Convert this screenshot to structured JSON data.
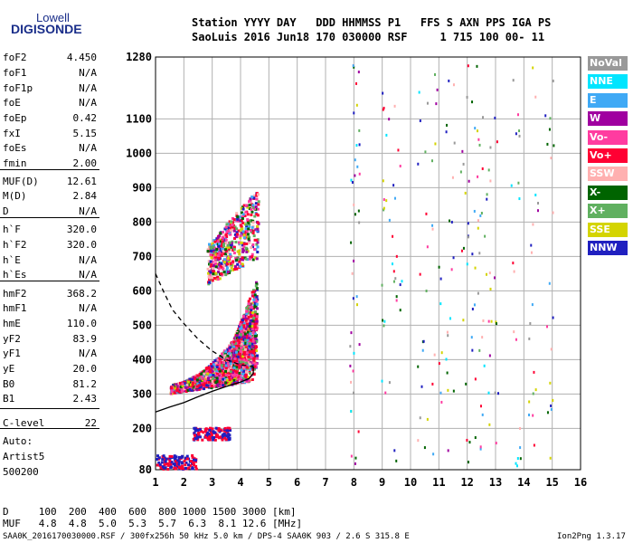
{
  "logo": {
    "line1": "Lowell",
    "line2": "DIGISONDE"
  },
  "header": {
    "row1": "Station YYYY DAY   DDD HHMMSS P1   FFS S AXN PPS IGA PS",
    "row2": "SaoLuis 2016 Jun18 170 030000 RSF     1 715 100 00- 11"
  },
  "params": [
    {
      "k": "foF2",
      "v": "4.450"
    },
    {
      "k": "foF1",
      "v": "N/A"
    },
    {
      "k": "foF1p",
      "v": "N/A"
    },
    {
      "k": "foE",
      "v": "N/A"
    },
    {
      "k": "foEp",
      "v": "0.42"
    },
    {
      "k": "fxI",
      "v": "5.15"
    },
    {
      "k": "foEs",
      "v": "N/A"
    },
    {
      "k": "fmin",
      "v": "2.00"
    },
    {
      "k": "MUF(D)",
      "v": "12.61"
    },
    {
      "k": "M(D)",
      "v": "2.84"
    },
    {
      "k": "D",
      "v": "N/A"
    },
    {
      "k": "h`F",
      "v": "320.0"
    },
    {
      "k": "h`F2",
      "v": "320.0"
    },
    {
      "k": "h`E",
      "v": "N/A"
    },
    {
      "k": "h`Es",
      "v": "N/A"
    },
    {
      "k": "hmF2",
      "v": "368.2"
    },
    {
      "k": "hmF1",
      "v": "N/A"
    },
    {
      "k": "hmE",
      "v": "110.0"
    },
    {
      "k": "yF2",
      "v": "83.9"
    },
    {
      "k": "yF1",
      "v": "N/A"
    },
    {
      "k": "yE",
      "v": "20.0"
    },
    {
      "k": "B0",
      "v": "81.2"
    },
    {
      "k": "B1",
      "v": "2.43"
    },
    {
      "k": "C-level",
      "v": "22"
    }
  ],
  "misc": {
    "auto": "Auto:",
    "artist": "Artist5",
    "version": "500200"
  },
  "legend": [
    {
      "label": "NoVal",
      "color": "#999999"
    },
    {
      "label": "NNE",
      "color": "#00e5ff"
    },
    {
      "label": "E",
      "color": "#3fa9f5"
    },
    {
      "label": "W",
      "color": "#a000a0"
    },
    {
      "label": "Vo-",
      "color": "#ff3ca0"
    },
    {
      "label": "Vo+",
      "color": "#ff0033"
    },
    {
      "label": "SSW",
      "color": "#ffb0b0"
    },
    {
      "label": "X-",
      "color": "#006400"
    },
    {
      "label": "X+",
      "color": "#60b060"
    },
    {
      "label": "SSE",
      "color": "#d4d400"
    },
    {
      "label": "NNW",
      "color": "#2020c0"
    }
  ],
  "footer": {
    "d_row": "D     100  200  400  600  800 1000 1500 3000 [km]",
    "muf_row": "MUF   4.8  4.8  5.0  5.3  5.7  6.3  8.1 12.6 [MHz]",
    "file_row": "SAA0K_2016170030000.RSF / 300fx256h 50 kHz 5.0 km / DPS-4 SAA0K 903 / 2.6 S 315.8 E",
    "version_row": "Ion2Png 1.3.17"
  },
  "chart_data": {
    "type": "scatter",
    "xlim": [
      1,
      16
    ],
    "ylim": [
      80,
      1280
    ],
    "x_ticks": [
      1,
      2,
      3,
      4,
      5,
      6,
      7,
      8,
      9,
      10,
      11,
      12,
      13,
      14,
      15,
      16
    ],
    "y_ticks": [
      80,
      200,
      300,
      400,
      500,
      600,
      700,
      800,
      900,
      1000,
      1100,
      1280
    ],
    "grid": true,
    "legend_position": "right",
    "profile_curve": [
      [
        1.0,
        248
      ],
      [
        1.5,
        262
      ],
      [
        2.0,
        275
      ],
      [
        2.5,
        292
      ],
      [
        3.0,
        308
      ],
      [
        3.5,
        322
      ],
      [
        4.0,
        335
      ],
      [
        4.3,
        345
      ],
      [
        4.45,
        360
      ],
      [
        4.45,
        380
      ]
    ],
    "profile_dashed": [
      [
        1.0,
        650
      ],
      [
        1.3,
        595
      ],
      [
        1.6,
        545
      ],
      [
        2.0,
        505
      ],
      [
        2.5,
        460
      ],
      [
        3.0,
        425
      ],
      [
        3.5,
        400
      ],
      [
        4.0,
        385
      ],
      [
        4.45,
        380
      ]
    ],
    "echo_regions": [
      {
        "name": "F2-trace",
        "x": [
          1.5,
          4.45
        ],
        "y": [
          305,
          520
        ]
      },
      {
        "name": "F2-upper",
        "x": [
          3.7,
          4.55
        ],
        "y": [
          380,
          640
        ]
      },
      {
        "name": "second-hop",
        "x": [
          2.8,
          4.6
        ],
        "y": [
          620,
          900
        ]
      },
      {
        "name": "low-echo",
        "x": [
          1.0,
          2.4
        ],
        "y": [
          85,
          125
        ]
      },
      {
        "name": "low-echo-2",
        "x": [
          2.3,
          3.6
        ],
        "y": [
          170,
          205
        ]
      }
    ],
    "interference_columns": [
      8.0,
      9.1,
      9.5,
      10.4,
      10.9,
      11.4,
      11.9,
      12.3,
      12.5,
      12.9,
      13.7,
      14.3,
      14.9
    ]
  }
}
